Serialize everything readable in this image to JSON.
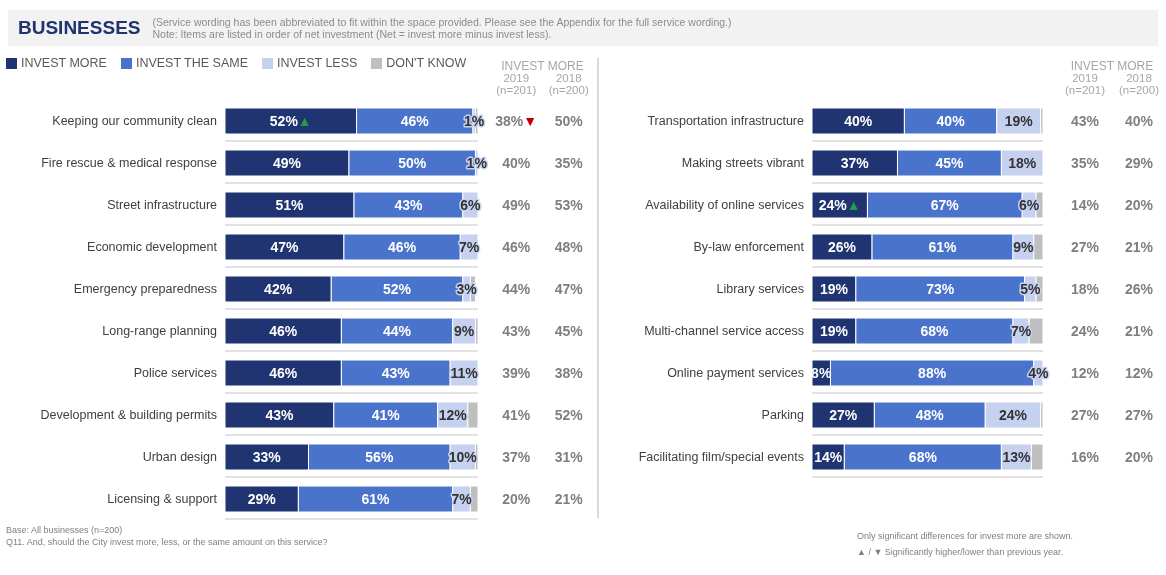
{
  "chart_data": [
    {
      "type": "bar",
      "orientation": "horizontal",
      "stacked": true,
      "title": "BUSINESSES",
      "subtitle": "(Service wording has been abbreviated to fit within the space provided.  Please see the Appendix for the full service wording.)\nNote: Items are listed in order of net investment (Net = invest more minus invest less).",
      "legend": "top left",
      "grid": "y",
      "categories": [
        "Keeping our community clean",
        "Fire rescue & medical response",
        "Street infrastructure",
        "Economic development",
        "Emergency preparedness",
        "Long-range  planning",
        "Police services",
        "Development  & building permits",
        "Urban design",
        "Licensing & support"
      ],
      "series": [
        {
          "name": "INVEST MORE",
          "color": "#1f3470",
          "values": [
            52,
            49,
            51,
            47,
            42,
            46,
            46,
            43,
            33,
            29
          ],
          "value_labels": [
            "52%▲",
            "49%",
            "51%",
            "47%",
            "42%",
            "46%",
            "46%",
            "43%",
            "33%",
            "29%"
          ]
        },
        {
          "name": "INVEST THE SAME",
          "color": "#4a74cc",
          "values": [
            46,
            50,
            43,
            46,
            52,
            44,
            43,
            41,
            56,
            61
          ],
          "value_labels": [
            "46%",
            "50%",
            "43%",
            "46%",
            "52%",
            "44%",
            "43%",
            "41%",
            "56%",
            "61%"
          ]
        },
        {
          "name": "INVEST LESS",
          "color": "#c5d1ef",
          "values": [
            1,
            1,
            6,
            7,
            3,
            9,
            11,
            12,
            10,
            7
          ],
          "value_labels": [
            "1%",
            "1%",
            "6%",
            "7%",
            "3%",
            "9%",
            "11%",
            "12%",
            "10%",
            "7%"
          ]
        },
        {
          "name": "DON'T KNOW",
          "color": "#bfbfbf",
          "values": [
            1,
            0,
            0,
            0,
            2,
            1,
            0,
            4,
            1,
            3
          ]
        }
      ],
      "annotations": [
        "Base: All businesses (n=200)",
        "Q11. And, should the City invest more, less, or the same amount on this service?"
      ]
    },
    {
      "type": "other",
      "title": "INVEST MORE",
      "categories": [
        "2019 (n=201)",
        "2018 (n=200)"
      ],
      "cell_labels": [
        [
          "38%▼",
          "50%"
        ],
        [
          "40%",
          "35%"
        ],
        [
          "49%",
          "53%"
        ],
        [
          "46%",
          "48%"
        ],
        [
          "44%",
          "47%"
        ],
        [
          "43%",
          "45%"
        ],
        [
          "39%",
          "38%"
        ],
        [
          "41%",
          "52%"
        ],
        [
          "37%",
          "31%"
        ],
        [
          "20%",
          "21%"
        ]
      ]
    },
    {
      "type": "bar",
      "orientation": "horizontal",
      "stacked": true,
      "grid": "y",
      "categories": [
        "Transportation  infrastructure",
        "Making streets vibrant",
        "Availability of online services",
        "By-law enforcement",
        "Library services",
        "Multi-channel service access",
        "Online payment services",
        "Parking",
        "Facilitating film/special events"
      ],
      "series": [
        {
          "color": "#1f3470",
          "values": [
            40,
            37,
            24,
            26,
            19,
            19,
            8,
            27,
            14
          ],
          "value_labels": [
            "40%",
            "37%",
            "24%▲",
            "26%",
            "19%",
            "19%",
            "8%",
            "27%",
            "14%"
          ]
        },
        {
          "color": "#4a74cc",
          "values": [
            40,
            45,
            67,
            61,
            73,
            68,
            88,
            48,
            68
          ],
          "value_labels": [
            "40%",
            "45%",
            "67%",
            "61%",
            "73%",
            "68%",
            "88%",
            "48%",
            "68%"
          ]
        },
        {
          "color": "#c5d1ef",
          "values": [
            19,
            18,
            6,
            9,
            5,
            7,
            4,
            24,
            13
          ],
          "value_labels": [
            "19%",
            "18%",
            "6%",
            "9%",
            "5%",
            "7%",
            "4%",
            "24%",
            "13%"
          ]
        },
        {
          "color": "#bfbfbf",
          "values": [
            1,
            0,
            3,
            4,
            3,
            6,
            0,
            1,
            5
          ]
        }
      ],
      "annotations": [
        "Only significant differences for invest more are shown.",
        "▲ / ▼ Significantly higher/lower than previous year."
      ]
    },
    {
      "type": "other",
      "title": "INVEST MORE",
      "categories": [
        "2019 (n=201)",
        "2018 (n=200)"
      ],
      "cell_labels": [
        [
          "43%",
          "40%"
        ],
        [
          "35%",
          "29%"
        ],
        [
          "14%",
          "20%"
        ],
        [
          "27%",
          "21%"
        ],
        [
          "18%",
          "26%"
        ],
        [
          "24%",
          "21%"
        ],
        [
          "12%",
          "12%"
        ],
        [
          "27%",
          "27%"
        ],
        [
          "16%",
          "20%"
        ]
      ]
    }
  ]
}
